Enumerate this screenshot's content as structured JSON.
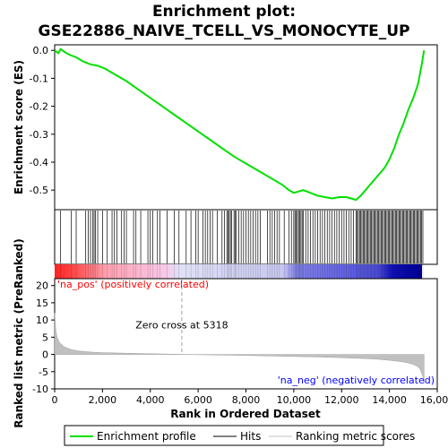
{
  "chart_data": {
    "type": "line",
    "title_line1": "Enrichment plot:",
    "title_line2": "GSE22886_NAIVE_TCELL_VS_MONOCYTE_UP",
    "es_panel": {
      "ylabel": "Enrichment score (ES)",
      "ylim": [
        -0.57,
        0.02
      ],
      "yticks": [
        "0.0",
        "-0.1",
        "-0.2",
        "-0.3",
        "-0.4",
        "-0.5"
      ],
      "ytick_values": [
        0.0,
        -0.1,
        -0.2,
        -0.3,
        -0.4,
        -0.5
      ],
      "line_color": "#00e000",
      "series": {
        "name": "Enrichment profile",
        "x": [
          0,
          150,
          250,
          400,
          600,
          900,
          1200,
          1500,
          1800,
          2100,
          2500,
          3000,
          3500,
          4000,
          4500,
          5000,
          5500,
          6000,
          6500,
          7000,
          7500,
          8000,
          8500,
          9000,
          9500,
          9800,
          10000,
          10200,
          10400,
          10700,
          11000,
          11300,
          11600,
          11900,
          12200,
          12400,
          12600,
          12800,
          13000,
          13200,
          13400,
          13600,
          13800,
          14000,
          14200,
          14400,
          14600,
          14800,
          15000,
          15200,
          15350,
          15450
        ],
        "y": [
          0.0,
          -0.01,
          0.005,
          -0.005,
          -0.015,
          -0.025,
          -0.04,
          -0.05,
          -0.055,
          -0.065,
          -0.085,
          -0.11,
          -0.14,
          -0.17,
          -0.2,
          -0.23,
          -0.26,
          -0.29,
          -0.32,
          -0.35,
          -0.38,
          -0.405,
          -0.43,
          -0.455,
          -0.48,
          -0.5,
          -0.51,
          -0.505,
          -0.5,
          -0.51,
          -0.52,
          -0.525,
          -0.53,
          -0.525,
          -0.525,
          -0.53,
          -0.535,
          -0.52,
          -0.5,
          -0.48,
          -0.46,
          -0.44,
          -0.42,
          -0.39,
          -0.35,
          -0.3,
          -0.26,
          -0.21,
          -0.17,
          -0.12,
          -0.05,
          0.0
        ]
      }
    },
    "hits_panel": {
      "hit_positions": [
        250,
        700,
        900,
        1300,
        1400,
        1500,
        1600,
        1650,
        1700,
        1800,
        2000,
        2200,
        2400,
        2500,
        2600,
        2800,
        2900,
        3000,
        3300,
        3400,
        3600,
        3900,
        4000,
        4100,
        4300,
        4400,
        4700,
        5000,
        5200,
        5500,
        5700,
        5900,
        6000,
        6200,
        6300,
        6400,
        6500,
        6600,
        6800,
        7000,
        7100,
        7200,
        7250,
        7300,
        7350,
        7400,
        7500,
        7550,
        7600,
        7700,
        7800,
        7900,
        8000,
        8100,
        8200,
        8300,
        8400,
        8500,
        8600,
        8900,
        9000,
        9100,
        9200,
        9300,
        9400,
        9600,
        9800,
        9900,
        10000,
        10050,
        10100,
        10150,
        10200,
        10250,
        10300,
        10350,
        10400,
        10500,
        10600,
        10700,
        10800,
        10900,
        11000,
        11100,
        11200,
        11300,
        11400,
        11500,
        11600,
        11700,
        11800,
        11900,
        12000,
        12100,
        12200,
        12300,
        12400,
        12500,
        12600,
        12650,
        12700,
        12750,
        12800,
        12850,
        12900,
        12950,
        13000,
        13050,
        13100,
        13150,
        13200,
        13250,
        13300,
        13350,
        13400,
        13450,
        13500,
        13550,
        13600,
        13650,
        13700,
        13750,
        13800,
        13850,
        13900,
        13950,
        14000,
        14050,
        14100,
        14150,
        14200,
        14250,
        14300,
        14350,
        14400,
        14450,
        14500,
        14550,
        14600,
        14650,
        14700,
        14750,
        14800,
        14850,
        14900,
        14950,
        15000,
        15050,
        15100,
        15150,
        15200,
        15250,
        15300,
        15350,
        15400
      ]
    },
    "colorbar": {
      "label_pos": "'na_pos' (positively correlated)",
      "label_neg": "'na_neg' (negatively correlated)",
      "pos_color": "#ff0000",
      "neg_color": "#0000ff"
    },
    "metric_panel": {
      "ylabel": "Ranked list metric (PreRanked)",
      "ylim": [
        -10,
        22
      ],
      "yticks": [
        "20",
        "15",
        "10",
        "5",
        "0",
        "-5",
        "-10"
      ],
      "ytick_values": [
        20,
        15,
        10,
        5,
        0,
        -5,
        -10
      ],
      "fill_color": "#c0c0c0",
      "zero_cross_text": "Zero cross at 5318",
      "zero_cross_x": 5318,
      "series": {
        "name": "Ranking metric scores",
        "x": [
          0,
          50,
          100,
          200,
          400,
          700,
          1000,
          1500,
          2000,
          3000,
          4000,
          5000,
          5318,
          6000,
          7000,
          8000,
          9000,
          10000,
          11000,
          12000,
          13000,
          13500,
          14000,
          14500,
          14800,
          15000,
          15200,
          15300,
          15400,
          15450
        ],
        "y": [
          12,
          7,
          5,
          3.5,
          2.2,
          1.4,
          1.0,
          0.7,
          0.5,
          0.35,
          0.2,
          0.08,
          0.0,
          -0.1,
          -0.2,
          -0.3,
          -0.45,
          -0.6,
          -0.75,
          -0.95,
          -1.2,
          -1.4,
          -1.7,
          -2.1,
          -2.5,
          -2.9,
          -3.6,
          -4.5,
          -6.5,
          -8.5
        ]
      }
    },
    "xaxis": {
      "label": "Rank in Ordered Dataset",
      "xlim": [
        0,
        16000
      ],
      "xticks": [
        "0",
        "2,000",
        "4,000",
        "6,000",
        "8,000",
        "10,000",
        "12,000",
        "14,000",
        "16,000"
      ],
      "xtick_values": [
        0,
        2000,
        4000,
        6000,
        8000,
        10000,
        12000,
        14000,
        16000
      ]
    },
    "legend": {
      "items": [
        {
          "label": "Enrichment profile",
          "color": "#00e000"
        },
        {
          "label": "Hits",
          "color": "#000000"
        },
        {
          "label": "Ranking metric scores",
          "color": "#c0c0c0"
        }
      ]
    }
  }
}
